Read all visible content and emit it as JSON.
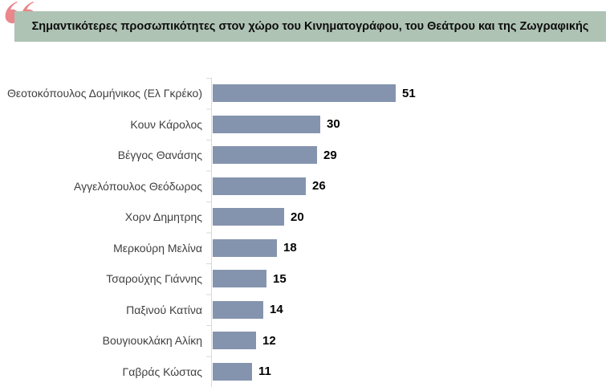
{
  "title": {
    "text": "Σημαντικότερες προσωπικότητες στον χώρο του Κινηματογράφου, του Θεάτρου και της Ζωγραφικής",
    "background_color": "#AEC3B4",
    "text_color": "#0d0d0d"
  },
  "decorations": {
    "quote_icon": "open-double-quote",
    "quote_color": "#EA868C"
  },
  "chart_data": {
    "type": "bar",
    "orientation": "horizontal",
    "title": "Σημαντικότερες προσωπικότητες στον χώρο του Κινηματογράφου, του Θεάτρου και της Ζωγραφικής",
    "categories": [
      "Θεοτοκόπουλος Δομήνικος (Ελ Γκρέκο)",
      "Κουν Κάρολος",
      "Βέγγος Θανάσης",
      "Αγγελόπουλος Θεόδωρος",
      "Χορν Δημητρης",
      "Μερκούρη Μελίνα",
      "Τσαρούχης Γιάννης",
      "Παξινού Κατίνα",
      "Βουγιουκλάκη Αλίκη",
      "Γαβράς Κώστας"
    ],
    "values": [
      51,
      30,
      29,
      26,
      20,
      18,
      15,
      14,
      12,
      11
    ],
    "value_labels_shown": true,
    "xlim": [
      0,
      51
    ],
    "xlabel": "",
    "ylabel": "",
    "grid": false,
    "legend": false,
    "bar_color": "#8594AE",
    "axis_color": "#D9D9D9",
    "label_color": "#3F3F3F",
    "value_label_color": "#000000"
  }
}
